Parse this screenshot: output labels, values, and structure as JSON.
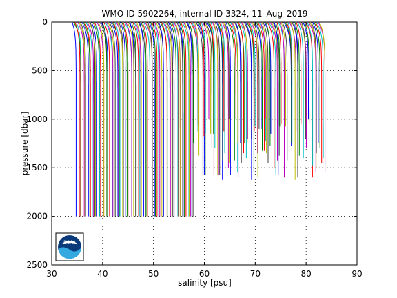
{
  "chart_data": {
    "type": "line",
    "title": "WMO ID 5902264, internal ID 3324, 11–Aug–2019",
    "xlabel": "salinity [psu]",
    "ylabel": "pressure [dbar]",
    "xlim": [
      30,
      90
    ],
    "ylim": [
      2500,
      0
    ],
    "y_reversed": true,
    "x_ticks": [
      "30",
      "40",
      "50",
      "60",
      "70",
      "80",
      "90"
    ],
    "y_ticks": [
      "0",
      "500",
      "1000",
      "1500",
      "2000",
      "2500"
    ],
    "x_tick_values": [
      30,
      40,
      50,
      60,
      70,
      80,
      90
    ],
    "y_tick_values": [
      0,
      500,
      1000,
      1500,
      2000,
      2500
    ],
    "grid": true,
    "grid_style": "dotted",
    "offset_step": 0.27,
    "base_salinity": 34.0,
    "profiles_group1": {
      "count": 85,
      "max_pressure": 2000
    },
    "profiles_group2": {
      "count": 96,
      "max_pressure_range": [
        1000,
        1650
      ]
    },
    "colors": [
      "#0000ff",
      "#008000",
      "#ff0000",
      "#00bfbf",
      "#bf00bf",
      "#bfbf00",
      "#404040"
    ],
    "logo": "noaa-logo"
  }
}
